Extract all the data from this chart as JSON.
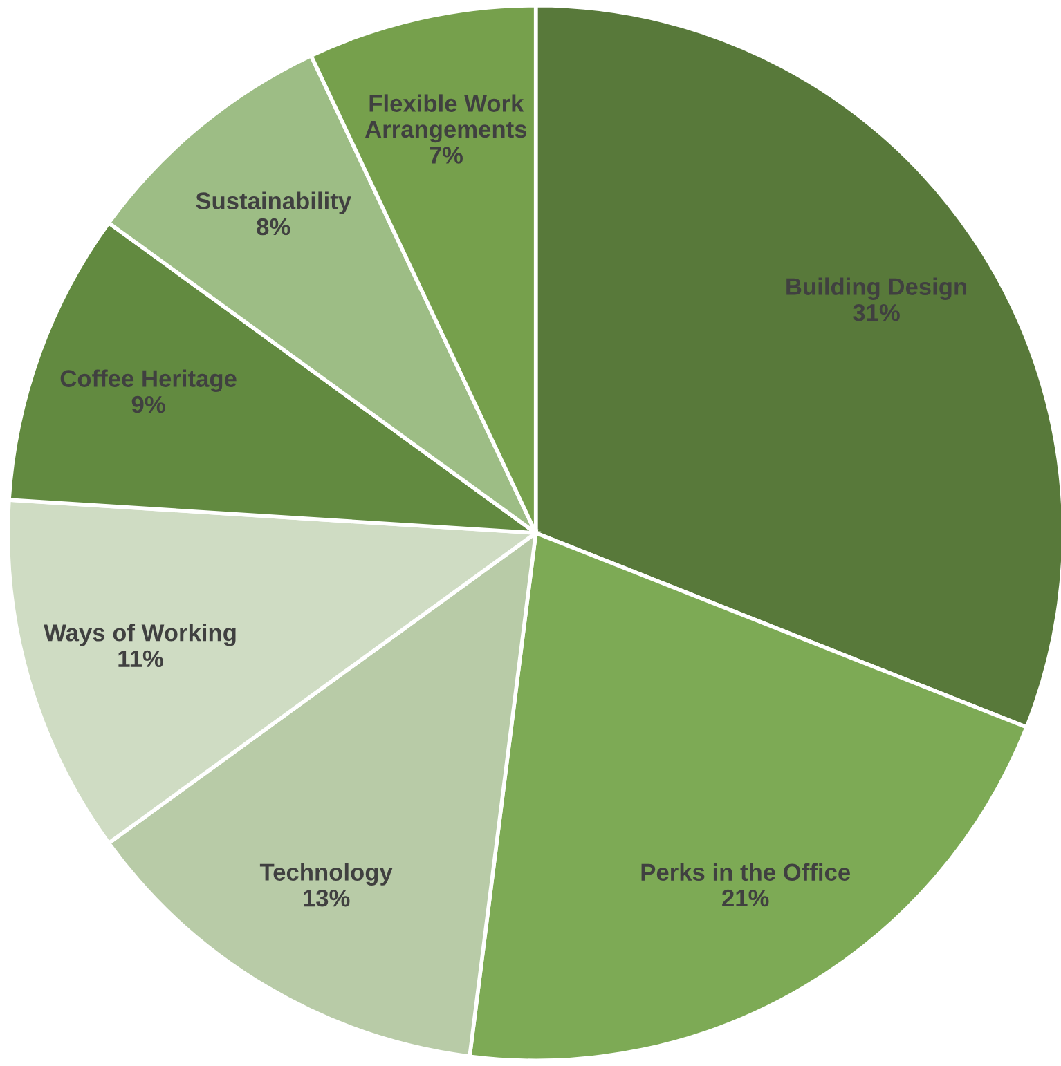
{
  "chart_data": {
    "type": "pie",
    "categories": [
      "Building Design",
      "Perks in the Office",
      "Technology",
      "Ways of Working",
      "Coffee Heritage",
      "Sustainability",
      "Flexible Work Arrangements"
    ],
    "values": [
      31,
      21,
      13,
      11,
      9,
      8,
      7
    ],
    "value_labels": [
      "31%",
      "21%",
      "13%",
      "11%",
      "9%",
      "8%",
      "7%"
    ],
    "colors": [
      "#58793a",
      "#7daa55",
      "#b8cba7",
      "#cfdcc3",
      "#628a40",
      "#9dbd85",
      "#76a04c"
    ],
    "legend": false
  }
}
